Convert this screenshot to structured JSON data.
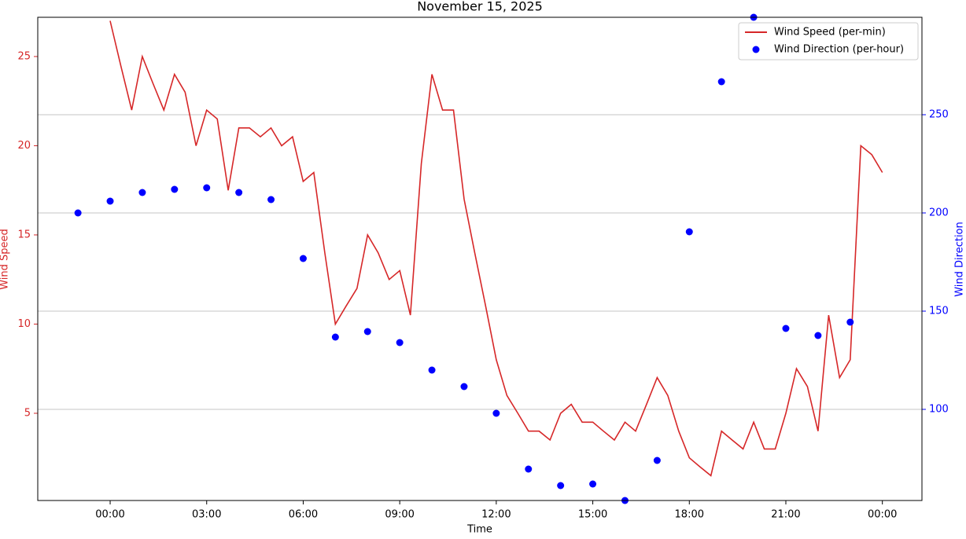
{
  "chart_data": {
    "type": "line",
    "title": "November 15, 2025",
    "x_label": "Time",
    "y_label": "Wind Speed",
    "y2_label": "Wind Direction",
    "xlim": [
      -2.25,
      25.23
    ],
    "xticks": [
      {
        "value": 0,
        "label": "00:00"
      },
      {
        "value": 3,
        "label": "03:00"
      },
      {
        "value": 6,
        "label": "06:00"
      },
      {
        "value": 9,
        "label": "09:00"
      },
      {
        "value": 12,
        "label": "12:00"
      },
      {
        "value": 15,
        "label": "15:00"
      },
      {
        "value": 18,
        "label": "18:00"
      },
      {
        "value": 21,
        "label": "21:00"
      },
      {
        "value": 24,
        "label": "00:00"
      }
    ],
    "ylim": [
      0.11,
      27.2
    ],
    "yticks": [
      5,
      10,
      15,
      20,
      25
    ],
    "y2lim": [
      53.6,
      299.6
    ],
    "y2ticks": [
      100,
      150,
      200,
      250
    ],
    "grid": "y2",
    "legend": "upper right",
    "series": [
      {
        "name": "Wind Speed (per-min)",
        "color": "#d62728",
        "kind": "line",
        "x": [
          0,
          0.33,
          0.67,
          1,
          1.33,
          1.67,
          2,
          2.33,
          2.67,
          3,
          3.33,
          3.67,
          4,
          4.33,
          4.67,
          5,
          5.33,
          5.67,
          6,
          6.33,
          6.67,
          7,
          7.33,
          7.67,
          8,
          8.33,
          8.67,
          9,
          9.33,
          9.67,
          10,
          10.33,
          10.67,
          11,
          11.33,
          11.67,
          12,
          12.33,
          12.67,
          13,
          13.33,
          13.67,
          14,
          14.33,
          14.67,
          15,
          15.33,
          15.67,
          16,
          16.33,
          16.67,
          17,
          17.33,
          17.67,
          18,
          18.33,
          18.67,
          19,
          19.33,
          19.67,
          20,
          20.33,
          20.67,
          21,
          21.33,
          21.67,
          22,
          22.33,
          22.67,
          23,
          23.33,
          23.67,
          24
        ],
        "values": [
          27,
          24.5,
          22,
          25,
          23.5,
          22,
          24,
          23,
          20,
          22,
          21.5,
          17.5,
          21,
          21,
          20.5,
          21,
          20,
          20.5,
          18,
          18.5,
          14,
          10,
          11,
          12,
          15,
          14,
          12.5,
          13,
          10.5,
          19,
          24,
          22,
          22,
          17,
          14,
          11,
          8,
          6,
          5,
          4,
          4,
          3.5,
          5,
          5.5,
          4.5,
          4.5,
          4,
          3.5,
          4.5,
          4,
          5.5,
          7,
          6,
          4,
          2.5,
          2,
          1.5,
          4,
          3.5,
          3,
          4.5,
          3,
          3,
          5,
          7.5,
          6.5,
          4,
          10.5,
          7,
          8,
          20,
          19.5,
          18.5
        ]
      },
      {
        "name": "Wind Direction (per-hour)",
        "color": "#0000ff",
        "kind": "scatter",
        "axis": "y2",
        "x": [
          -1,
          0,
          1,
          2,
          3,
          4,
          5,
          6,
          7,
          8,
          9,
          10,
          11,
          12,
          13,
          14,
          15,
          16,
          17,
          18,
          19,
          20,
          21,
          22,
          23
        ],
        "values": [
          200,
          206,
          210.4,
          212,
          212.8,
          210.4,
          206.8,
          176.8,
          136.8,
          139.6,
          134,
          120,
          111.6,
          98,
          69.6,
          61.2,
          62,
          53.6,
          74,
          190.4,
          266.8,
          299.6,
          141.2,
          137.6,
          144.4
        ]
      }
    ]
  }
}
